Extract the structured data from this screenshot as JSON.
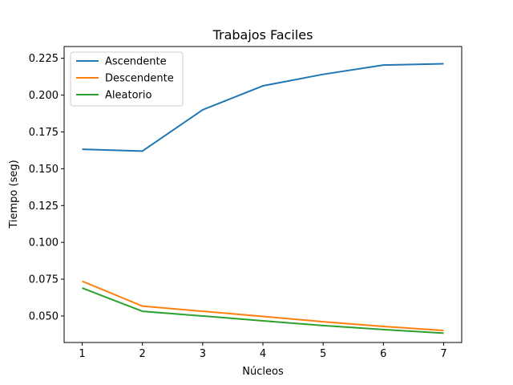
{
  "chart_data": {
    "type": "line",
    "title": "Trabajos Faciles",
    "xlabel": "Núcleos",
    "ylabel": "Tiempo (seg)",
    "x": [
      1,
      2,
      3,
      4,
      5,
      6,
      7
    ],
    "xticks": [
      "1",
      "2",
      "3",
      "4",
      "5",
      "6",
      "7"
    ],
    "yticks": [
      "0.050",
      "0.075",
      "0.100",
      "0.125",
      "0.150",
      "0.175",
      "0.200",
      "0.225"
    ],
    "ytick_values": [
      0.05,
      0.075,
      0.1,
      0.125,
      0.15,
      0.175,
      0.2,
      0.225
    ],
    "xlim": [
      0.7,
      7.3
    ],
    "ylim": [
      0.032,
      0.233
    ],
    "grid": false,
    "legend_position": "top-left",
    "series": [
      {
        "name": "Ascendente",
        "color": "#1f77b4",
        "values": [
          0.1632,
          0.162,
          0.19,
          0.2063,
          0.2141,
          0.2204,
          0.2213
        ]
      },
      {
        "name": "Descendente",
        "color": "#ff7f0e",
        "values": [
          0.0736,
          0.0567,
          0.0532,
          0.0497,
          0.0461,
          0.0429,
          0.0402
        ]
      },
      {
        "name": "Aleatorio",
        "color": "#2ca02c",
        "values": [
          0.069,
          0.0532,
          0.05,
          0.0467,
          0.0435,
          0.0408,
          0.0383
        ]
      }
    ]
  }
}
